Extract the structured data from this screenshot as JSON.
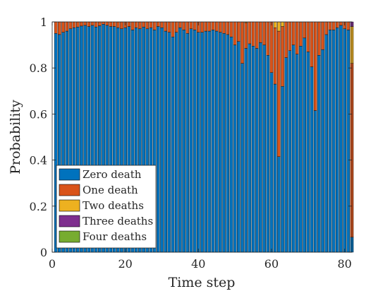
{
  "chart_data": {
    "type": "bar",
    "stacked": true,
    "title": "",
    "xlabel": "Time step",
    "ylabel": "Probability",
    "xlim": [
      0,
      82
    ],
    "ylim": [
      0,
      1
    ],
    "x_ticks": [
      "0",
      "20",
      "40",
      "60",
      "80"
    ],
    "y_ticks": [
      "0",
      "0.2",
      "0.4",
      "0.6",
      "0.8",
      "1"
    ],
    "grid": false,
    "legend_position": "bottom-left",
    "colors": {
      "zero": "#0072BD",
      "one": "#D95319",
      "two": "#EDB120",
      "three": "#7E2F8E",
      "four": "#77AC30",
      "axis": "#262626",
      "bar_edge": "#000000"
    },
    "series": [
      {
        "name": "Zero death",
        "values": [
          0.95,
          0.945,
          0.955,
          0.96,
          0.97,
          0.975,
          0.978,
          0.982,
          0.985,
          0.98,
          0.985,
          0.978,
          0.983,
          0.99,
          0.985,
          0.98,
          0.98,
          0.975,
          0.97,
          0.975,
          0.98,
          0.965,
          0.975,
          0.97,
          0.978,
          0.97,
          0.975,
          0.965,
          0.98,
          0.975,
          0.96,
          0.955,
          0.935,
          0.955,
          0.975,
          0.965,
          0.95,
          0.97,
          0.965,
          0.955,
          0.955,
          0.96,
          0.96,
          0.965,
          0.96,
          0.955,
          0.95,
          0.945,
          0.935,
          0.9,
          0.915,
          0.82,
          0.885,
          0.905,
          0.895,
          0.885,
          0.91,
          0.9,
          0.855,
          0.78,
          0.73,
          0.415,
          0.72,
          0.845,
          0.875,
          0.9,
          0.86,
          0.895,
          0.93,
          0.87,
          0.805,
          0.615,
          0.855,
          0.88,
          0.945,
          0.965,
          0.965,
          0.975,
          0.985,
          0.97,
          0.965,
          0.065
        ]
      },
      {
        "name": "One death",
        "values": [
          0.05,
          0.055,
          0.045,
          0.04,
          0.03,
          0.025,
          0.022,
          0.018,
          0.015,
          0.02,
          0.015,
          0.022,
          0.017,
          0.01,
          0.015,
          0.02,
          0.02,
          0.025,
          0.03,
          0.025,
          0.02,
          0.035,
          0.025,
          0.03,
          0.022,
          0.03,
          0.025,
          0.035,
          0.02,
          0.025,
          0.04,
          0.045,
          0.065,
          0.045,
          0.025,
          0.035,
          0.05,
          0.03,
          0.035,
          0.045,
          0.045,
          0.04,
          0.04,
          0.035,
          0.04,
          0.045,
          0.05,
          0.055,
          0.065,
          0.1,
          0.085,
          0.18,
          0.112,
          0.095,
          0.105,
          0.115,
          0.09,
          0.1,
          0.145,
          0.22,
          0.245,
          0.545,
          0.26,
          0.155,
          0.125,
          0.1,
          0.14,
          0.105,
          0.07,
          0.13,
          0.195,
          0.385,
          0.145,
          0.12,
          0.055,
          0.035,
          0.035,
          0.025,
          0.015,
          0.03,
          0.035,
          0.755
        ]
      },
      {
        "name": "Two deaths",
        "values": [
          0,
          0,
          0,
          0,
          0,
          0,
          0,
          0,
          0,
          0,
          0,
          0,
          0,
          0,
          0,
          0,
          0,
          0,
          0,
          0,
          0,
          0,
          0,
          0,
          0,
          0,
          0,
          0,
          0,
          0,
          0,
          0,
          0,
          0,
          0,
          0,
          0,
          0,
          0,
          0,
          0,
          0,
          0,
          0,
          0,
          0,
          0,
          0,
          0,
          0,
          0,
          0,
          0.003,
          0,
          0,
          0,
          0,
          0,
          0,
          0,
          0.025,
          0.04,
          0.02,
          0,
          0,
          0,
          0,
          0,
          0,
          0,
          0,
          0,
          0,
          0,
          0,
          0,
          0,
          0,
          0,
          0,
          0,
          0.16
        ]
      },
      {
        "name": "Three deaths",
        "values": [
          0,
          0,
          0,
          0,
          0,
          0,
          0,
          0,
          0,
          0,
          0,
          0,
          0,
          0,
          0,
          0,
          0,
          0,
          0,
          0,
          0,
          0,
          0,
          0,
          0,
          0,
          0,
          0,
          0,
          0,
          0,
          0,
          0,
          0,
          0,
          0,
          0,
          0,
          0,
          0,
          0,
          0,
          0,
          0,
          0,
          0,
          0,
          0,
          0,
          0,
          0,
          0,
          0,
          0,
          0,
          0,
          0,
          0,
          0,
          0,
          0,
          0,
          0,
          0,
          0,
          0,
          0,
          0,
          0,
          0,
          0,
          0,
          0,
          0,
          0,
          0,
          0,
          0,
          0,
          0,
          0,
          0.02
        ]
      },
      {
        "name": "Four deaths",
        "values": [
          0,
          0,
          0,
          0,
          0,
          0,
          0,
          0,
          0,
          0,
          0,
          0,
          0,
          0,
          0,
          0,
          0,
          0,
          0,
          0,
          0,
          0,
          0,
          0,
          0,
          0,
          0,
          0,
          0,
          0,
          0,
          0,
          0,
          0,
          0,
          0,
          0,
          0,
          0,
          0,
          0,
          0,
          0,
          0,
          0,
          0,
          0,
          0,
          0,
          0,
          0,
          0,
          0,
          0,
          0,
          0,
          0,
          0,
          0,
          0,
          0,
          0,
          0,
          0,
          0,
          0,
          0,
          0,
          0,
          0,
          0,
          0,
          0,
          0,
          0,
          0,
          0,
          0,
          0,
          0,
          0,
          0
        ]
      }
    ]
  }
}
